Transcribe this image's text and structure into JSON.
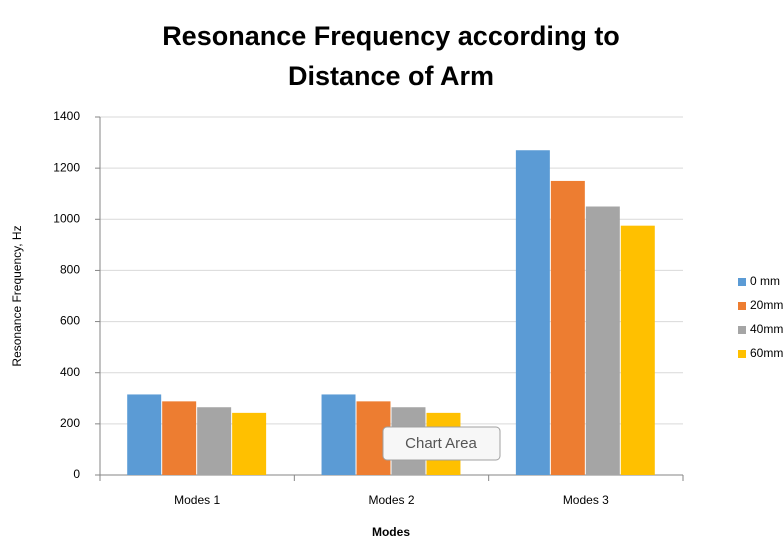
{
  "chart_data": {
    "type": "bar",
    "title": [
      "Resonance Frequency according to",
      "Distance of Arm"
    ],
    "x_label": "Modes",
    "y_label": "Resonance Frequency, Hz",
    "categories": [
      "Modes 1",
      "Modes 2",
      "Modes 3"
    ],
    "series": [
      {
        "name": "0 mm",
        "color": "#5b9bd5",
        "values": [
          315,
          315,
          1270
        ]
      },
      {
        "name": "20mm",
        "color": "#ed7d31",
        "values": [
          288,
          288,
          1150
        ]
      },
      {
        "name": "40mm",
        "color": "#a5a5a5",
        "values": [
          265,
          265,
          1050
        ]
      },
      {
        "name": "60mm",
        "color": "#ffc000",
        "values": [
          243,
          243,
          975
        ]
      }
    ],
    "ylim": [
      0,
      1400
    ],
    "yticks": [
      0,
      200,
      400,
      600,
      800,
      1000,
      1200,
      1400
    ],
    "grid": true,
    "legend": "right"
  },
  "tooltip": "Chart Area"
}
